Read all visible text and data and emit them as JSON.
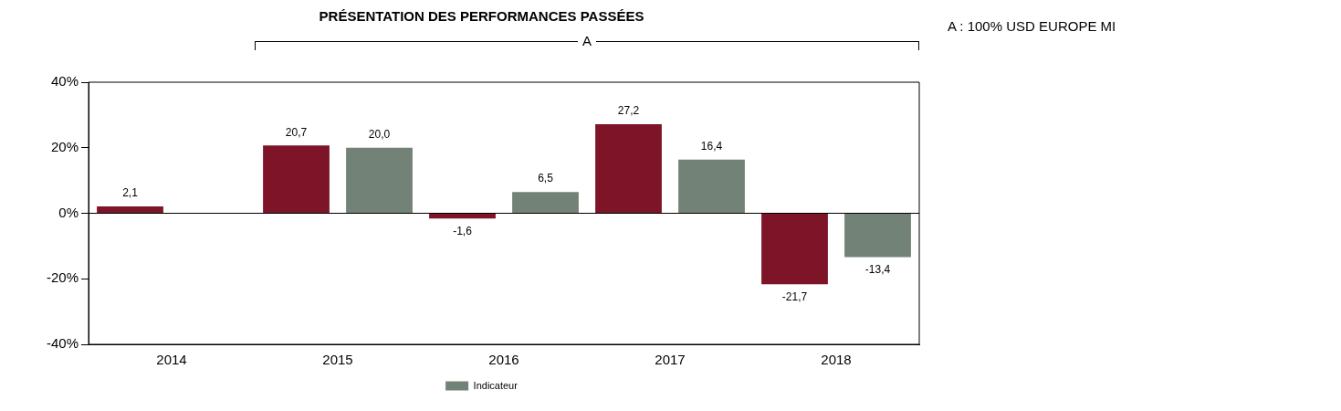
{
  "chart_data": {
    "type": "bar",
    "title": "PRÉSENTATION DES PERFORMANCES PASSÉES",
    "categories": [
      "2014",
      "2015",
      "2016",
      "2017",
      "2018"
    ],
    "series": [
      {
        "color": "#7e1427",
        "values": [
          2.1,
          20.7,
          -1.6,
          27.2,
          -21.7
        ],
        "value_labels": [
          "2,1",
          "20,7",
          "-1,6",
          "27,2",
          "-21,7"
        ]
      },
      {
        "name": "Indicateur",
        "color": "#738276",
        "values": [
          null,
          20.0,
          6.5,
          16.4,
          -13.4
        ],
        "value_labels": [
          null,
          "20,0",
          "6,5",
          "16,4",
          "-13,4"
        ]
      }
    ],
    "ylim": [
      -40,
      40
    ],
    "yticks": [
      {
        "value": -40,
        "label": "-40%"
      },
      {
        "value": -20,
        "label": "-20%"
      },
      {
        "value": 0,
        "label": "0%"
      },
      {
        "value": 20,
        "label": "20%"
      },
      {
        "value": 40,
        "label": "40%"
      }
    ],
    "grid": false,
    "legend": "bottom",
    "ref_lines": [
      {
        "axis": "y",
        "value": 0,
        "color": "#000000"
      }
    ],
    "annotations": [
      "A : 100% USD EUROPE MI",
      "A"
    ]
  }
}
